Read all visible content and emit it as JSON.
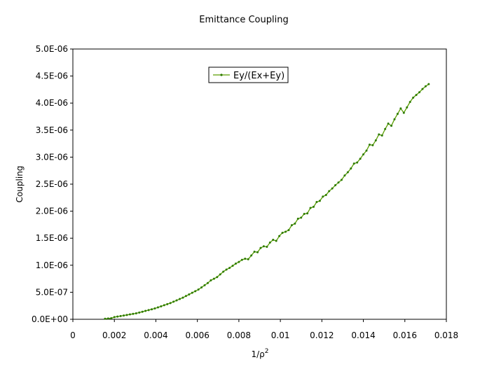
{
  "chart_data": {
    "type": "line",
    "title": "Emittance Coupling",
    "xlabel": "1/ρ",
    "xlabel_superscript": "2",
    "ylabel": "Coupling",
    "xlim": [
      0,
      0.018
    ],
    "ylim": [
      0,
      5e-06
    ],
    "x_ticks": [
      0,
      0.002,
      0.004,
      0.006,
      0.008,
      0.01,
      0.012,
      0.014,
      0.016,
      0.018
    ],
    "x_tick_labels": [
      "0",
      "0.002",
      "0.004",
      "0.006",
      "0.008",
      "0.01",
      "0.012",
      "0.014",
      "0.016",
      "0.018"
    ],
    "y_ticks": [
      0,
      5e-07,
      1e-06,
      1.5e-06,
      2e-06,
      2.5e-06,
      3e-06,
      3.5e-06,
      4e-06,
      4.5e-06,
      5e-06
    ],
    "y_tick_labels": [
      "0.0E+00",
      "5.0E-07",
      "1.0E-06",
      "1.5E-06",
      "2.0E-06",
      "2.5E-06",
      "3.0E-06",
      "3.5E-06",
      "4.0E-06",
      "4.5E-06",
      "5.0E-06"
    ],
    "grid": false,
    "legend_position": "top-center",
    "series": [
      {
        "name": "Ey/(Ex+Ey)",
        "color": "#5a9e00",
        "marker_color": "#2d7a00",
        "points": [
          [
            0.00155,
            1e-08
          ],
          [
            0.0017,
            1.5e-08
          ],
          [
            0.00185,
            2e-08
          ],
          [
            0.002,
            4e-08
          ],
          [
            0.00215,
            5e-08
          ],
          [
            0.0023,
            6e-08
          ],
          [
            0.00245,
            7e-08
          ],
          [
            0.0026,
            8e-08
          ],
          [
            0.00275,
            9e-08
          ],
          [
            0.0029,
            1e-07
          ],
          [
            0.00305,
            1.1e-07
          ],
          [
            0.0032,
            1.25e-07
          ],
          [
            0.00335,
            1.4e-07
          ],
          [
            0.0035,
            1.55e-07
          ],
          [
            0.00365,
            1.7e-07
          ],
          [
            0.0038,
            1.85e-07
          ],
          [
            0.00395,
            2e-07
          ],
          [
            0.0041,
            2.2e-07
          ],
          [
            0.00425,
            2.4e-07
          ],
          [
            0.0044,
            2.6e-07
          ],
          [
            0.00455,
            2.8e-07
          ],
          [
            0.0047,
            3e-07
          ],
          [
            0.00485,
            3.25e-07
          ],
          [
            0.005,
            3.5e-07
          ],
          [
            0.00515,
            3.75e-07
          ],
          [
            0.0053,
            4e-07
          ],
          [
            0.00545,
            4.3e-07
          ],
          [
            0.0056,
            4.6e-07
          ],
          [
            0.00575,
            4.9e-07
          ],
          [
            0.0059,
            5.2e-07
          ],
          [
            0.00605,
            5.5e-07
          ],
          [
            0.0062,
            5.9e-07
          ],
          [
            0.00635,
            6.3e-07
          ],
          [
            0.0065,
            6.7e-07
          ],
          [
            0.00665,
            7.2e-07
          ],
          [
            0.0068,
            7.5e-07
          ],
          [
            0.00695,
            7.8e-07
          ],
          [
            0.0071,
            8.3e-07
          ],
          [
            0.00725,
            8.8e-07
          ],
          [
            0.0074,
            9.2e-07
          ],
          [
            0.00755,
            9.5e-07
          ],
          [
            0.0077,
            9.9e-07
          ],
          [
            0.00785,
            1.03e-06
          ],
          [
            0.008,
            1.06e-06
          ],
          [
            0.00815,
            1.1e-06
          ],
          [
            0.0083,
            1.12e-06
          ],
          [
            0.00845,
            1.11e-06
          ],
          [
            0.0086,
            1.18e-06
          ],
          [
            0.00875,
            1.25e-06
          ],
          [
            0.0089,
            1.24e-06
          ],
          [
            0.00905,
            1.32e-06
          ],
          [
            0.0092,
            1.35e-06
          ],
          [
            0.00935,
            1.34e-06
          ],
          [
            0.0095,
            1.42e-06
          ],
          [
            0.00965,
            1.47e-06
          ],
          [
            0.0098,
            1.45e-06
          ],
          [
            0.00995,
            1.54e-06
          ],
          [
            0.0101,
            1.6e-06
          ],
          [
            0.01025,
            1.62e-06
          ],
          [
            0.0104,
            1.65e-06
          ],
          [
            0.01055,
            1.74e-06
          ],
          [
            0.0107,
            1.77e-06
          ],
          [
            0.01085,
            1.86e-06
          ],
          [
            0.011,
            1.88e-06
          ],
          [
            0.01115,
            1.95e-06
          ],
          [
            0.0113,
            1.96e-06
          ],
          [
            0.01145,
            2.06e-06
          ],
          [
            0.0116,
            2.08e-06
          ],
          [
            0.01175,
            2.17e-06
          ],
          [
            0.0119,
            2.19e-06
          ],
          [
            0.01205,
            2.27e-06
          ],
          [
            0.0122,
            2.3e-06
          ],
          [
            0.01235,
            2.37e-06
          ],
          [
            0.0125,
            2.42e-06
          ],
          [
            0.01265,
            2.48e-06
          ],
          [
            0.0128,
            2.53e-06
          ],
          [
            0.01295,
            2.58e-06
          ],
          [
            0.0131,
            2.66e-06
          ],
          [
            0.01325,
            2.72e-06
          ],
          [
            0.0134,
            2.79e-06
          ],
          [
            0.01355,
            2.88e-06
          ],
          [
            0.0137,
            2.9e-06
          ],
          [
            0.01385,
            2.97e-06
          ],
          [
            0.014,
            3.05e-06
          ],
          [
            0.01415,
            3.12e-06
          ],
          [
            0.0143,
            3.23e-06
          ],
          [
            0.01445,
            3.22e-06
          ],
          [
            0.0146,
            3.31e-06
          ],
          [
            0.01475,
            3.42e-06
          ],
          [
            0.0149,
            3.4e-06
          ],
          [
            0.01505,
            3.52e-06
          ],
          [
            0.0152,
            3.62e-06
          ],
          [
            0.01535,
            3.58e-06
          ],
          [
            0.0155,
            3.7e-06
          ],
          [
            0.01565,
            3.8e-06
          ],
          [
            0.0158,
            3.9e-06
          ],
          [
            0.01595,
            3.82e-06
          ],
          [
            0.0161,
            3.92e-06
          ],
          [
            0.01625,
            4.02e-06
          ],
          [
            0.0164,
            4.1e-06
          ],
          [
            0.01655,
            4.15e-06
          ],
          [
            0.0167,
            4.2e-06
          ],
          [
            0.01685,
            4.26e-06
          ],
          [
            0.017,
            4.31e-06
          ],
          [
            0.01715,
            4.35e-06
          ]
        ]
      }
    ]
  }
}
